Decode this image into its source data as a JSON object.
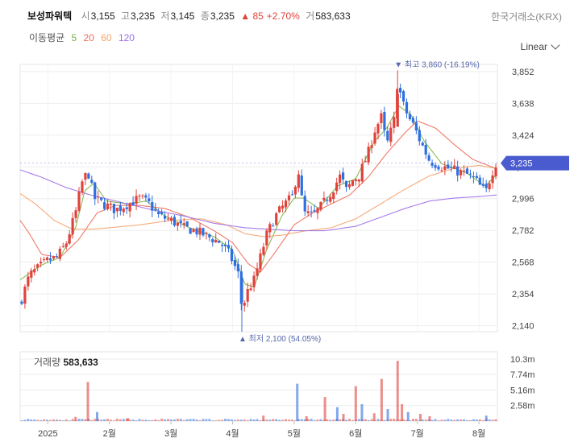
{
  "header": {
    "stock_name": "보성파워텍",
    "open_label": "시",
    "open": "3,155",
    "high_label": "고",
    "high": "3,235",
    "low_label": "저",
    "low": "3,145",
    "close_label": "종",
    "close": "3,235",
    "change": "▲ 85",
    "change_pct": "+2.70%",
    "volume_label": "거",
    "volume": "583,633",
    "exchange": "한국거래소(KRX)"
  },
  "ma_legend": {
    "title": "이동평균",
    "items": [
      {
        "label": "5",
        "color": "#7cb342"
      },
      {
        "label": "20",
        "color": "#ef6c5a"
      },
      {
        "label": "60",
        "color": "#f5a26b"
      },
      {
        "label": "120",
        "color": "#9c6ee8"
      }
    ]
  },
  "scale_button": {
    "label": "Linear"
  },
  "volume_panel": {
    "title": "거래량",
    "value": "583,633"
  },
  "colors": {
    "up": "#e0433c",
    "down": "#2f6fe0",
    "grid": "#eeeeee",
    "last_badge": "#4a5bd0"
  },
  "chart_data": {
    "type": "candlestick",
    "y_ticks": [
      "3,852",
      "3,638",
      "3,424",
      "3,210",
      "2,996",
      "2,782",
      "2,568",
      "2,354",
      "2,140"
    ],
    "y_tick_values": [
      3852,
      3638,
      3424,
      3210,
      2996,
      2782,
      2568,
      2354,
      2140
    ],
    "ylim": [
      2100,
      3900
    ],
    "x_ticks": [
      {
        "label": "2025",
        "month": 1
      },
      {
        "label": "2월",
        "month": 2
      },
      {
        "label": "3월",
        "month": 3
      },
      {
        "label": "4월",
        "month": 4
      },
      {
        "label": "5월",
        "month": 5
      },
      {
        "label": "6월",
        "month": 6
      },
      {
        "label": "7월",
        "month": 7
      },
      {
        "label": "8월",
        "month": 8
      }
    ],
    "x_range_months": [
      0.55,
      8.3
    ],
    "last_price": {
      "label": "3,235",
      "value": 3235
    },
    "max_annotation": {
      "text": "▼ 최고 3,860 (-16.19%)",
      "value": 3860,
      "month": 6.68
    },
    "min_annotation": {
      "text": "▲ 최저 2,100 (54.05%)",
      "value": 2100,
      "month": 4.15
    },
    "price_keypoints": [
      [
        0.55,
        2290
      ],
      [
        0.7,
        2480
      ],
      [
        0.85,
        2530
      ],
      [
        1.0,
        2580
      ],
      [
        1.15,
        2600
      ],
      [
        1.3,
        2700
      ],
      [
        1.45,
        2900
      ],
      [
        1.55,
        3100
      ],
      [
        1.65,
        3180
      ],
      [
        1.75,
        3000
      ],
      [
        1.9,
        2960
      ],
      [
        2.1,
        2920
      ],
      [
        2.3,
        2960
      ],
      [
        2.5,
        3000
      ],
      [
        2.65,
        2960
      ],
      [
        2.8,
        2880
      ],
      [
        3.0,
        2850
      ],
      [
        3.2,
        2800
      ],
      [
        3.4,
        2780
      ],
      [
        3.6,
        2740
      ],
      [
        3.8,
        2700
      ],
      [
        3.95,
        2620
      ],
      [
        4.1,
        2480
      ],
      [
        4.15,
        2250
      ],
      [
        4.25,
        2380
      ],
      [
        4.35,
        2450
      ],
      [
        4.45,
        2600
      ],
      [
        4.55,
        2750
      ],
      [
        4.7,
        2880
      ],
      [
        4.85,
        2960
      ],
      [
        5.0,
        3020
      ],
      [
        5.05,
        3250
      ],
      [
        5.15,
        2900
      ],
      [
        5.3,
        2880
      ],
      [
        5.45,
        2950
      ],
      [
        5.6,
        3040
      ],
      [
        5.75,
        3150
      ],
      [
        5.85,
        3050
      ],
      [
        5.95,
        3120
      ],
      [
        6.05,
        3150
      ],
      [
        6.2,
        3300
      ],
      [
        6.3,
        3450
      ],
      [
        6.42,
        3550
      ],
      [
        6.5,
        3350
      ],
      [
        6.62,
        3520
      ],
      [
        6.68,
        3800
      ],
      [
        6.75,
        3650
      ],
      [
        6.85,
        3550
      ],
      [
        6.95,
        3480
      ],
      [
        7.05,
        3380
      ],
      [
        7.2,
        3250
      ],
      [
        7.35,
        3220
      ],
      [
        7.5,
        3200
      ],
      [
        7.65,
        3180
      ],
      [
        7.8,
        3160
      ],
      [
        7.95,
        3120
      ],
      [
        8.05,
        3060
      ],
      [
        8.12,
        3050
      ],
      [
        8.2,
        3160
      ],
      [
        8.27,
        3235
      ]
    ],
    "ma_keypoints": {
      "ma5": [
        [
          0.55,
          2450
        ],
        [
          0.9,
          2550
        ],
        [
          1.2,
          2600
        ],
        [
          1.45,
          2800
        ],
        [
          1.6,
          3050
        ],
        [
          1.75,
          3100
        ],
        [
          1.95,
          2980
        ],
        [
          2.3,
          2960
        ],
        [
          2.6,
          2980
        ],
        [
          2.9,
          2880
        ],
        [
          3.3,
          2800
        ],
        [
          3.7,
          2740
        ],
        [
          4.0,
          2650
        ],
        [
          4.2,
          2420
        ],
        [
          4.35,
          2400
        ],
        [
          4.55,
          2650
        ],
        [
          4.8,
          2880
        ],
        [
          5.0,
          3000
        ],
        [
          5.15,
          3000
        ],
        [
          5.4,
          2930
        ],
        [
          5.7,
          3080
        ],
        [
          6.0,
          3130
        ],
        [
          6.3,
          3380
        ],
        [
          6.5,
          3470
        ],
        [
          6.7,
          3620
        ],
        [
          6.9,
          3560
        ],
        [
          7.1,
          3390
        ],
        [
          7.4,
          3230
        ],
        [
          7.8,
          3170
        ],
        [
          8.1,
          3080
        ],
        [
          8.27,
          3150
        ]
      ],
      "ma20": [
        [
          0.55,
          2850
        ],
        [
          0.7,
          2760
        ],
        [
          0.9,
          2620
        ],
        [
          1.2,
          2600
        ],
        [
          1.5,
          2720
        ],
        [
          1.8,
          2900
        ],
        [
          2.1,
          2950
        ],
        [
          2.5,
          2950
        ],
        [
          2.9,
          2930
        ],
        [
          3.3,
          2870
        ],
        [
          3.7,
          2780
        ],
        [
          4.0,
          2700
        ],
        [
          4.25,
          2560
        ],
        [
          4.45,
          2500
        ],
        [
          4.7,
          2640
        ],
        [
          5.0,
          2820
        ],
        [
          5.3,
          2900
        ],
        [
          5.6,
          2960
        ],
        [
          5.9,
          3020
        ],
        [
          6.2,
          3140
        ],
        [
          6.5,
          3300
        ],
        [
          6.8,
          3440
        ],
        [
          7.0,
          3520
        ],
        [
          7.3,
          3470
        ],
        [
          7.6,
          3360
        ],
        [
          7.9,
          3260
        ],
        [
          8.27,
          3200
        ]
      ],
      "ma60": [
        [
          0.55,
          3030
        ],
        [
          0.8,
          2960
        ],
        [
          1.1,
          2850
        ],
        [
          1.4,
          2790
        ],
        [
          1.7,
          2790
        ],
        [
          2.0,
          2800
        ],
        [
          2.5,
          2820
        ],
        [
          3.0,
          2850
        ],
        [
          3.5,
          2860
        ],
        [
          3.9,
          2820
        ],
        [
          4.2,
          2760
        ],
        [
          4.5,
          2740
        ],
        [
          4.8,
          2750
        ],
        [
          5.2,
          2780
        ],
        [
          5.6,
          2800
        ],
        [
          6.0,
          2860
        ],
        [
          6.4,
          2960
        ],
        [
          6.8,
          3060
        ],
        [
          7.2,
          3150
        ],
        [
          7.6,
          3200
        ],
        [
          8.0,
          3220
        ],
        [
          8.27,
          3200
        ]
      ],
      "ma120": [
        [
          0.55,
          3190
        ],
        [
          0.9,
          3140
        ],
        [
          1.3,
          3070
        ],
        [
          1.7,
          3020
        ],
        [
          2.2,
          2970
        ],
        [
          2.7,
          2920
        ],
        [
          3.2,
          2880
        ],
        [
          3.7,
          2830
        ],
        [
          4.2,
          2800
        ],
        [
          4.6,
          2790
        ],
        [
          5.0,
          2780
        ],
        [
          5.5,
          2780
        ],
        [
          6.0,
          2810
        ],
        [
          6.4,
          2870
        ],
        [
          6.8,
          2930
        ],
        [
          7.2,
          2980
        ],
        [
          7.6,
          3000
        ],
        [
          8.0,
          3010
        ],
        [
          8.27,
          3020
        ]
      ]
    },
    "volume": {
      "y_ticks": [
        "10.3m",
        "7.74m",
        "5.16m",
        "2.58m"
      ],
      "y_tick_values": [
        10300000,
        7740000,
        5160000,
        2580000
      ],
      "ylim": [
        0,
        11500000
      ],
      "spikes": [
        [
          1.45,
          700000
        ],
        [
          1.65,
          6500000
        ],
        [
          1.8,
          1500000
        ],
        [
          2.3,
          500000
        ],
        [
          4.5,
          900000
        ],
        [
          5.05,
          6200000
        ],
        [
          5.2,
          800000
        ],
        [
          5.5,
          4000000
        ],
        [
          5.7,
          2300000
        ],
        [
          5.8,
          1200000
        ],
        [
          6.0,
          5800000
        ],
        [
          6.1,
          2800000
        ],
        [
          6.3,
          1300000
        ],
        [
          6.42,
          7000000
        ],
        [
          6.52,
          2000000
        ],
        [
          6.68,
          10000000
        ],
        [
          6.75,
          2800000
        ],
        [
          6.85,
          1500000
        ],
        [
          7.05,
          1200000
        ],
        [
          7.2,
          800000
        ],
        [
          8.12,
          900000
        ]
      ],
      "base": 280000
    }
  }
}
